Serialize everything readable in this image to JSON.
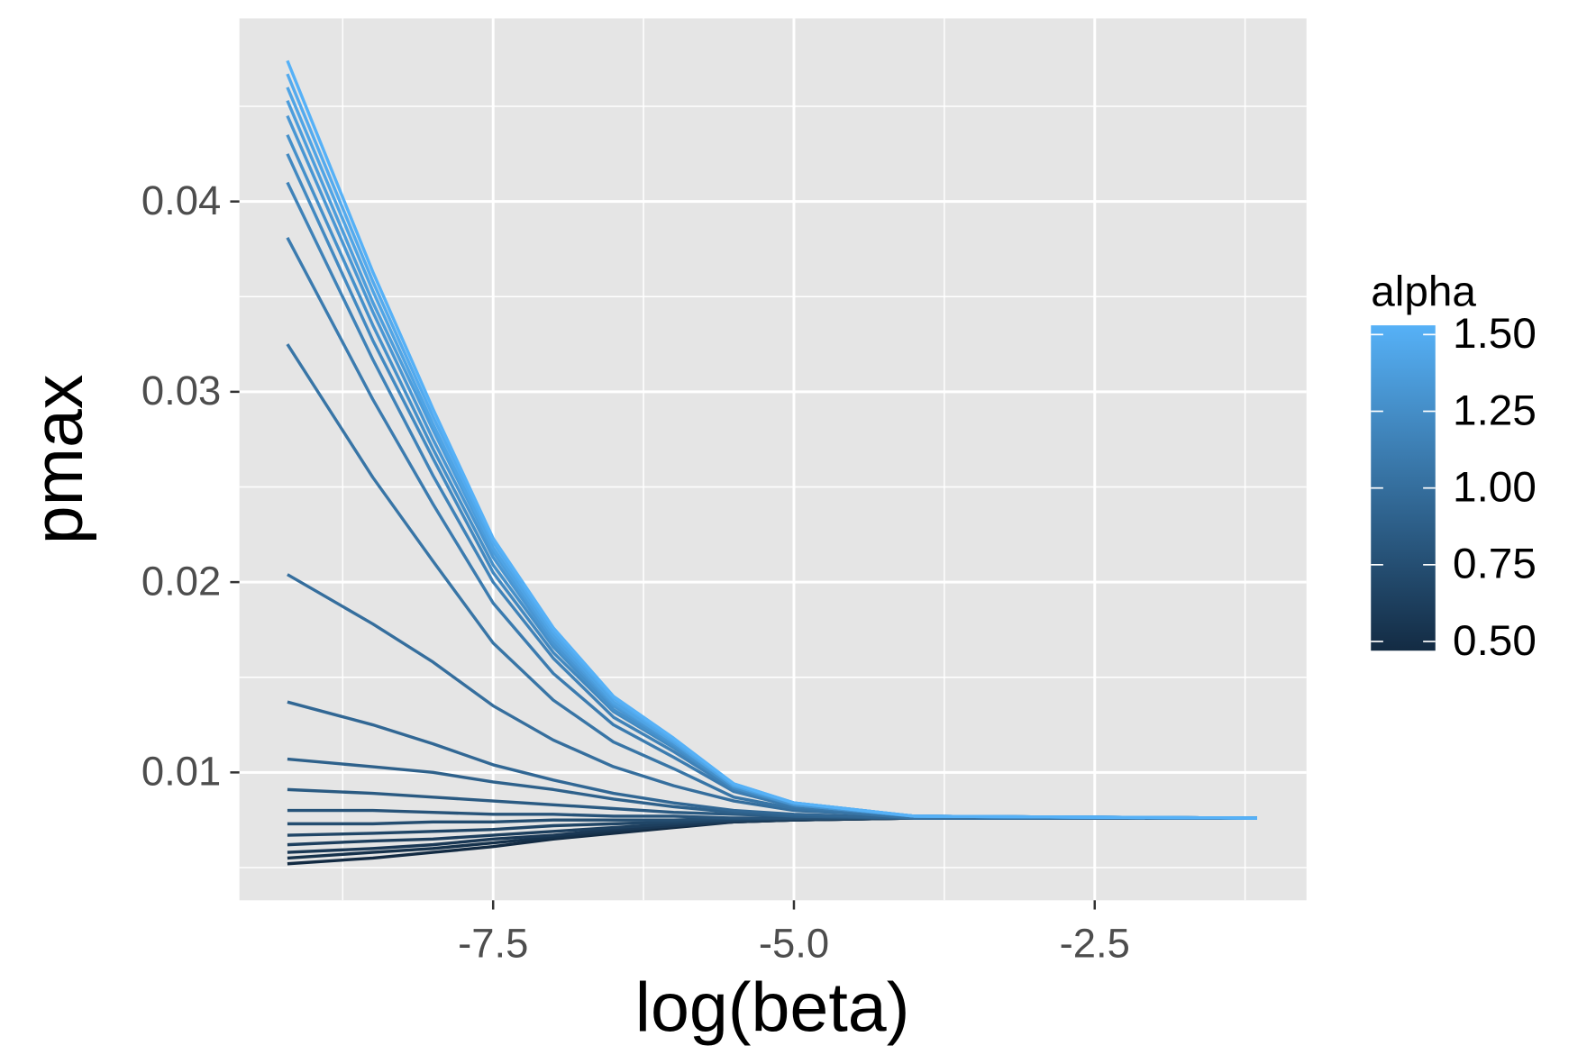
{
  "chart_data": {
    "type": "line",
    "x_label": "log(beta)",
    "y_label": "pmax",
    "x": [
      -9.21,
      -8.5,
      -8,
      -7.5,
      -7,
      -6.5,
      -6,
      -5.5,
      -5,
      -4,
      -1.15
    ],
    "xlim": [
      -9.609,
      -0.74
    ],
    "ylim": [
      0.00328,
      0.04962
    ],
    "xticks": [
      -7.5,
      {
        "value": -5,
        "label": "-5.0"
      },
      -2.5
    ],
    "yticks": [
      0.01,
      0.02,
      0.03,
      0.04
    ],
    "x_minor_ticks": [
      -8.75,
      -6.25,
      -3.75,
      -1.25
    ],
    "y_minor_ticks": [
      0.005,
      0.015,
      0.025,
      0.035,
      0.045
    ],
    "grid": true,
    "colorbar": {
      "title": "alpha",
      "limits": [
        0.5,
        1.5
      ],
      "low": "#132B43",
      "high": "#56B1F7",
      "ticks": [
        {
          "value": 0.5,
          "label": "0.50"
        },
        {
          "value": 0.75,
          "label": "0.75"
        },
        {
          "value": 1,
          "label": "1.00"
        },
        {
          "value": 1.25,
          "label": "1.25"
        },
        {
          "value": 1.5,
          "label": "1.50"
        }
      ]
    },
    "series": [
      {
        "alpha": 0.5,
        "values": [
          0.0052,
          0.0055,
          0.0058,
          0.0061,
          0.0065,
          0.0068,
          0.0071,
          0.0074,
          0.0075,
          0.0076,
          0.0076
        ]
      },
      {
        "alpha": 0.55,
        "values": [
          0.0055,
          0.0058,
          0.006,
          0.0063,
          0.0066,
          0.0069,
          0.0072,
          0.0074,
          0.0075,
          0.0076,
          0.0076
        ]
      },
      {
        "alpha": 0.6,
        "values": [
          0.0058,
          0.006,
          0.0062,
          0.0065,
          0.0067,
          0.007,
          0.0072,
          0.0074,
          0.0075,
          0.0076,
          0.0076
        ]
      },
      {
        "alpha": 0.65,
        "values": [
          0.0062,
          0.0064,
          0.0065,
          0.0067,
          0.0069,
          0.0071,
          0.0073,
          0.0075,
          0.0075,
          0.0076,
          0.0076
        ]
      },
      {
        "alpha": 0.7,
        "values": [
          0.0067,
          0.0068,
          0.0069,
          0.007,
          0.0072,
          0.0073,
          0.0074,
          0.0075,
          0.0076,
          0.0076,
          0.0076
        ]
      },
      {
        "alpha": 0.75,
        "values": [
          0.0073,
          0.0073,
          0.0074,
          0.0074,
          0.0075,
          0.0075,
          0.0075,
          0.0076,
          0.0076,
          0.0076,
          0.0076
        ]
      },
      {
        "alpha": 0.8,
        "values": [
          0.008,
          0.008,
          0.0079,
          0.0078,
          0.0078,
          0.0077,
          0.0077,
          0.0076,
          0.0076,
          0.0076,
          0.0076
        ]
      },
      {
        "alpha": 0.85,
        "values": [
          0.0091,
          0.0089,
          0.0087,
          0.0085,
          0.0083,
          0.0081,
          0.0079,
          0.0078,
          0.0077,
          0.0076,
          0.0076
        ]
      },
      {
        "alpha": 0.9,
        "values": [
          0.0107,
          0.0103,
          0.01,
          0.0095,
          0.0091,
          0.0086,
          0.0082,
          0.0079,
          0.0077,
          0.0076,
          0.0076
        ]
      },
      {
        "alpha": 0.95,
        "values": [
          0.0137,
          0.0125,
          0.0115,
          0.0104,
          0.0096,
          0.0089,
          0.0084,
          0.008,
          0.0078,
          0.0076,
          0.0076
        ]
      },
      {
        "alpha": 1,
        "values": [
          0.0204,
          0.0178,
          0.0158,
          0.0135,
          0.0117,
          0.0103,
          0.0093,
          0.0085,
          0.008,
          0.0077,
          0.0076
        ]
      },
      {
        "alpha": 1.05,
        "values": [
          0.0325,
          0.0255,
          0.0211,
          0.0168,
          0.0138,
          0.0116,
          0.0102,
          0.0087,
          0.0081,
          0.0076,
          0.0076
        ]
      },
      {
        "alpha": 1.1,
        "values": [
          0.0381,
          0.0296,
          0.0241,
          0.0189,
          0.0152,
          0.0125,
          0.0108,
          0.009,
          0.0082,
          0.0077,
          0.0076
        ]
      },
      {
        "alpha": 1.15,
        "values": [
          0.041,
          0.0317,
          0.0256,
          0.02,
          0.016,
          0.0129,
          0.0111,
          0.0091,
          0.0083,
          0.0077,
          0.0076
        ]
      },
      {
        "alpha": 1.2,
        "values": [
          0.0425,
          0.0327,
          0.0265,
          0.0205,
          0.0163,
          0.0132,
          0.0113,
          0.0092,
          0.0083,
          0.0077,
          0.0076
        ]
      },
      {
        "alpha": 1.25,
        "values": [
          0.0435,
          0.0335,
          0.027,
          0.0209,
          0.0166,
          0.0133,
          0.0114,
          0.0092,
          0.0083,
          0.0077,
          0.0076
        ]
      },
      {
        "alpha": 1.3,
        "values": [
          0.0445,
          0.0342,
          0.0275,
          0.0213,
          0.0168,
          0.0135,
          0.0115,
          0.0093,
          0.0083,
          0.0077,
          0.0076
        ]
      },
      {
        "alpha": 1.35,
        "values": [
          0.0453,
          0.0347,
          0.028,
          0.0216,
          0.017,
          0.0136,
          0.0116,
          0.0093,
          0.0084,
          0.0077,
          0.0076
        ]
      },
      {
        "alpha": 1.4,
        "values": [
          0.046,
          0.0353,
          0.0283,
          0.0218,
          0.0172,
          0.0137,
          0.0116,
          0.0093,
          0.0084,
          0.0077,
          0.0076
        ]
      },
      {
        "alpha": 1.45,
        "values": [
          0.0467,
          0.0358,
          0.0287,
          0.0221,
          0.0174,
          0.0139,
          0.0117,
          0.0094,
          0.0084,
          0.0077,
          0.0076
        ]
      },
      {
        "alpha": 1.5,
        "values": [
          0.0474,
          0.0363,
          0.0291,
          0.0223,
          0.0176,
          0.014,
          0.0118,
          0.0094,
          0.0084,
          0.0077,
          0.0076
        ]
      }
    ]
  }
}
